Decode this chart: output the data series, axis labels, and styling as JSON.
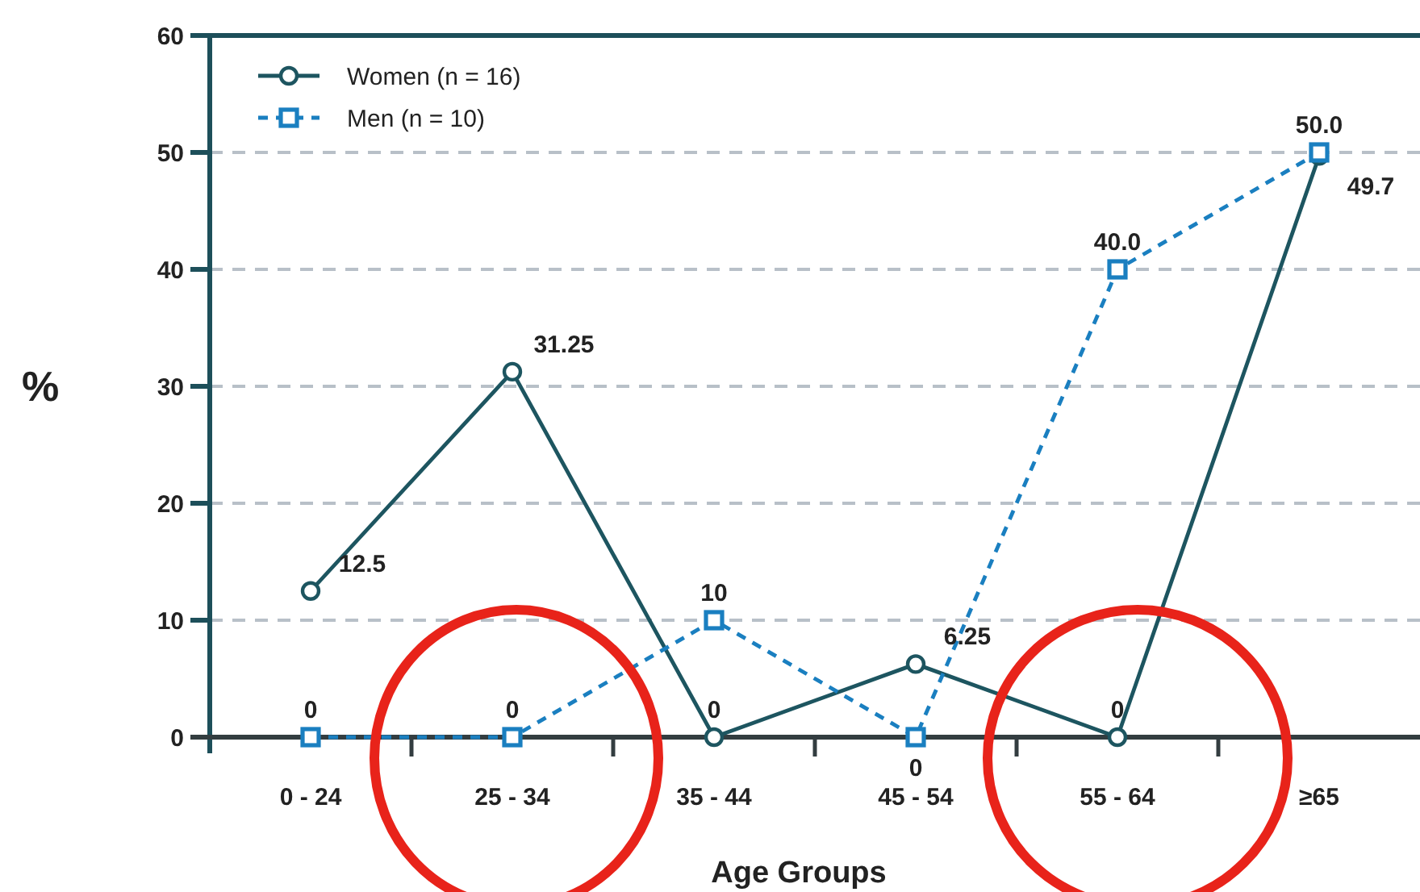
{
  "chart_data": {
    "type": "line",
    "xlabel": "Age Groups",
    "ylabel": "%",
    "categories": [
      "0 - 24",
      "25 - 34",
      "35 - 44",
      "45 - 54",
      "55 - 64",
      "≥65"
    ],
    "series": [
      {
        "name": "Women (n = 16)",
        "color": "#1d5560",
        "values": [
          12.5,
          31.25,
          0,
          6.25,
          0,
          49.7
        ],
        "value_labels": [
          "12.5",
          "31.25",
          "0",
          "6.25",
          "0",
          "49.7"
        ],
        "marker": "circle",
        "line_style": "solid"
      },
      {
        "name": "Men (n = 10)",
        "color": "#1a7fc0",
        "values": [
          0,
          0,
          10,
          0,
          40.0,
          50.0
        ],
        "value_labels": [
          "0",
          "0",
          "10",
          "0",
          "40.0",
          "50.0"
        ],
        "marker": "square",
        "line_style": "dashed"
      }
    ],
    "ylim": [
      0,
      60
    ],
    "yticks": [
      0,
      10,
      20,
      30,
      40,
      50,
      60
    ],
    "grid": "y",
    "legend": "top left"
  }
}
